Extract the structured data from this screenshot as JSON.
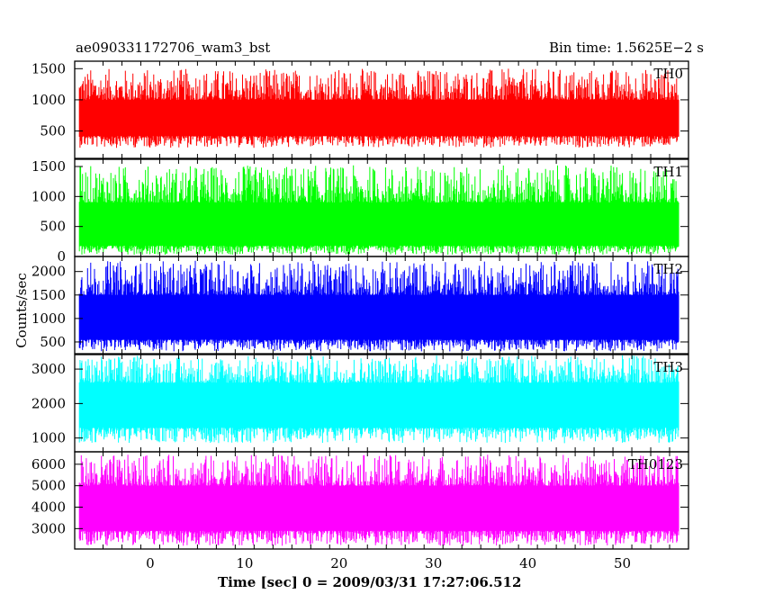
{
  "header": {
    "title_left": "ae090331172706_wam3_bst",
    "title_right": "Bin time: 1.5625E−2 s"
  },
  "chart_data": {
    "type": "line",
    "shared_x": {
      "label": "Time [sec] 0 = 2009/03/31 17:27:06.512",
      "range": [
        -8,
        57
      ],
      "ticks": [
        0,
        10,
        20,
        30,
        40,
        50
      ],
      "data_range": [
        -7.5,
        56.0
      ]
    },
    "ylabel": "Counts/sec",
    "panels": [
      {
        "name": "TH0",
        "color": "#ff0000",
        "ylim": [
          60,
          1620
        ],
        "yticks": [
          500,
          1000,
          1500
        ],
        "band": {
          "min": 230,
          "low": 420,
          "high": 1000,
          "max": 1500
        }
      },
      {
        "name": "TH1",
        "color": "#00ff00",
        "ylim": [
          0,
          1620
        ],
        "yticks": [
          0,
          500,
          1000,
          1500
        ],
        "band": {
          "min": 30,
          "low": 180,
          "high": 900,
          "max": 1520
        }
      },
      {
        "name": "TH2",
        "color": "#0000ff",
        "ylim": [
          250,
          2320
        ],
        "yticks": [
          500,
          1000,
          1500,
          2000
        ],
        "band": {
          "min": 300,
          "low": 550,
          "high": 1500,
          "max": 2230
        }
      },
      {
        "name": "TH3",
        "color": "#00ffff",
        "ylim": [
          600,
          3420
        ],
        "yticks": [
          1000,
          2000,
          3000
        ],
        "band": {
          "min": 850,
          "low": 1300,
          "high": 2600,
          "max": 3400
        }
      },
      {
        "name": "TH0123",
        "color": "#ff00ff",
        "ylim": [
          2050,
          6580
        ],
        "yticks": [
          3000,
          4000,
          5000,
          6000
        ],
        "band": {
          "min": 2200,
          "low": 2900,
          "high": 5000,
          "max": 6450
        }
      }
    ]
  }
}
